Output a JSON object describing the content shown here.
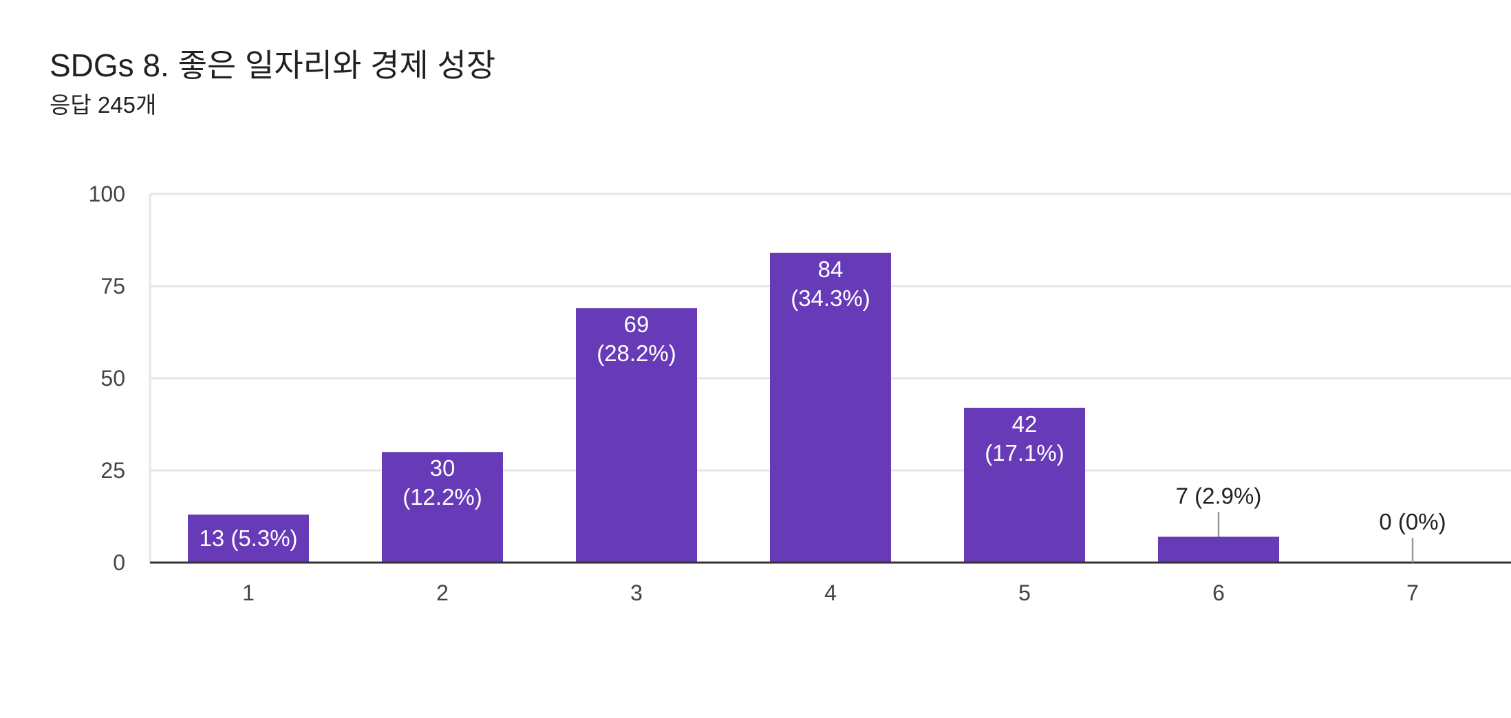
{
  "header": {
    "title": "SDGs 8. 좋은 일자리와 경제 성장",
    "subtitle": "응답 245개"
  },
  "colors": {
    "bar": "#673ab7",
    "grid": "#e6e6e6",
    "axis": "#333333",
    "label_inside": "#ffffff",
    "label_outside": "#222222",
    "leader_line": "#999999"
  },
  "chart_data": {
    "type": "bar",
    "categories": [
      "1",
      "2",
      "3",
      "4",
      "5",
      "6",
      "7"
    ],
    "values": [
      13,
      30,
      69,
      84,
      42,
      7,
      0
    ],
    "data_labels": [
      "13 (5.3%)",
      "30 (12.2%)",
      "69 (28.2%)",
      "84 (34.3%)",
      "42 (17.1%)",
      "7 (2.9%)",
      "0 (0%)"
    ],
    "ylim": [
      0,
      100
    ],
    "yticks": [
      0,
      25,
      50,
      75,
      100
    ],
    "grid": true,
    "legend": "none"
  }
}
